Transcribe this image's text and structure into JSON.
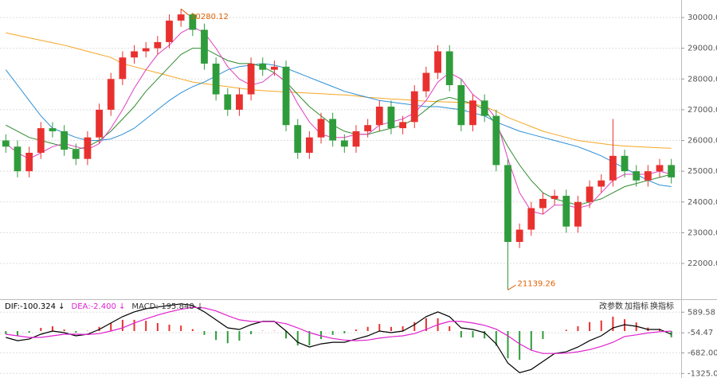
{
  "chart_data": [
    {
      "type": "candlestick",
      "up_color": "#e8312f",
      "down_color": "#2f9c3b",
      "open": [
        26000,
        25800,
        25000,
        25600,
        26400,
        26300,
        25700,
        25400,
        26100,
        27000,
        28000,
        28700,
        28900,
        29000,
        29200,
        29900,
        30100,
        29600,
        28500,
        27500,
        27000,
        27500,
        28500,
        28300,
        28400,
        26500,
        25600,
        26100,
        26700,
        26000,
        25800,
        26300,
        26500,
        27100,
        26400,
        26600,
        27600,
        28200,
        28900,
        27800,
        26500,
        27300,
        26800,
        25200,
        22700,
        23100,
        23800,
        24100,
        24200,
        23200,
        24000,
        24500,
        24700,
        25500,
        25000,
        24700,
        25000,
        25200
      ],
      "high": [
        26200,
        26000,
        25800,
        26600,
        26600,
        26500,
        25900,
        26300,
        27200,
        28200,
        28900,
        29100,
        29200,
        29400,
        30100,
        30280.12,
        30150,
        29800,
        28700,
        27700,
        27700,
        28700,
        28700,
        28600,
        28600,
        26700,
        26300,
        26900,
        26900,
        26200,
        26500,
        26700,
        27300,
        27300,
        26800,
        27800,
        28400,
        29100,
        29100,
        28000,
        27500,
        27500,
        27000,
        25400,
        23300,
        24000,
        24300,
        24400,
        24400,
        24200,
        24700,
        24900,
        26700,
        25700,
        25200,
        25200,
        25400,
        25400
      ],
      "low": [
        25600,
        24800,
        24800,
        25400,
        26100,
        25500,
        25200,
        25200,
        25900,
        26800,
        27800,
        28500,
        28700,
        28800,
        29000,
        29700,
        29400,
        28300,
        27300,
        26800,
        26800,
        27300,
        28100,
        28100,
        26300,
        25400,
        25400,
        25900,
        25800,
        25600,
        25600,
        26100,
        26300,
        26200,
        26200,
        26400,
        27400,
        28000,
        27600,
        26300,
        26300,
        26600,
        25000,
        21139.26,
        22500,
        22900,
        23600,
        23900,
        23000,
        23000,
        23800,
        24300,
        24500,
        24800,
        24500,
        24500,
        24800,
        24600
      ],
      "close": [
        25800,
        25000,
        25600,
        26400,
        26300,
        25700,
        25400,
        26100,
        27000,
        28000,
        28700,
        28900,
        29000,
        29200,
        29900,
        30100,
        29600,
        28500,
        27500,
        27000,
        27500,
        28500,
        28300,
        28400,
        26500,
        25600,
        26100,
        26700,
        26000,
        25800,
        26300,
        26500,
        27100,
        26400,
        26600,
        27600,
        28200,
        28900,
        27800,
        26500,
        27300,
        26800,
        25200,
        22700,
        23100,
        23800,
        24100,
        24200,
        23200,
        24000,
        24500,
        24700,
        25500,
        25000,
        24700,
        25000,
        25200,
        24800
      ],
      "lines": [
        {
          "color": "#f5a623",
          "values": [
            29500,
            29420,
            29340,
            29260,
            29180,
            29100,
            29000,
            28900,
            28800,
            28700,
            28500,
            28400,
            28300,
            28200,
            28100,
            28000,
            27900,
            27850,
            27800,
            27750,
            27700,
            27650,
            27620,
            27600,
            27580,
            27560,
            27540,
            27520,
            27500,
            27480,
            27450,
            27400,
            27380,
            27350,
            27330,
            27300,
            27280,
            27260,
            27250,
            27240,
            27200,
            27100,
            26950,
            26750,
            26600,
            26450,
            26300,
            26200,
            26100,
            26000,
            25950,
            25900,
            25850,
            25820,
            25800,
            25780,
            25760,
            25750
          ]
        },
        {
          "color": "#2b8fd6",
          "values": [
            28300,
            27800,
            27300,
            26800,
            26400,
            26250,
            26100,
            26000,
            26000,
            26050,
            26200,
            26400,
            26700,
            27000,
            27300,
            27550,
            27750,
            27900,
            28100,
            28300,
            28400,
            28450,
            28500,
            28450,
            28350,
            28200,
            28050,
            27900,
            27750,
            27600,
            27500,
            27400,
            27300,
            27250,
            27200,
            27150,
            27100,
            27100,
            27050,
            27000,
            26900,
            26800,
            26600,
            26450,
            26300,
            26200,
            26100,
            26000,
            25900,
            25800,
            25650,
            25500,
            25300,
            25100,
            24900,
            24700,
            24550,
            24500
          ]
        },
        {
          "color": "#2e8b2e",
          "values": [
            26500,
            26300,
            26100,
            26000,
            25900,
            25800,
            25700,
            25800,
            26000,
            26300,
            26700,
            27100,
            27600,
            28000,
            28400,
            28800,
            29000,
            29000,
            28800,
            28600,
            28500,
            28500,
            28400,
            28200,
            27900,
            27500,
            27100,
            26800,
            26500,
            26300,
            26200,
            26200,
            26300,
            26400,
            26500,
            26700,
            27000,
            27300,
            27400,
            27300,
            27200,
            27000,
            26500,
            25800,
            25200,
            24700,
            24300,
            24100,
            24000,
            23900,
            24000,
            24100,
            24300,
            24500,
            24600,
            24700,
            24800,
            24900
          ]
        },
        {
          "color": "#e040c0",
          "values": [
            25900,
            25600,
            25400,
            25600,
            25800,
            25900,
            25800,
            25700,
            25900,
            26400,
            27000,
            27700,
            28300,
            28800,
            29100,
            29500,
            29700,
            29500,
            29000,
            28400,
            28000,
            27800,
            27900,
            28200,
            27900,
            27200,
            26600,
            26200,
            26100,
            26100,
            26200,
            26200,
            26500,
            26600,
            26700,
            26900,
            27300,
            27900,
            28200,
            28000,
            27500,
            27200,
            26700,
            25400,
            24300,
            23700,
            23600,
            23900,
            23900,
            23800,
            23900,
            24300,
            24700,
            24900,
            24900,
            24900,
            25000,
            24900
          ]
        }
      ],
      "high_annotation": {
        "value": 30280.12,
        "label": "30280.12"
      },
      "low_annotation": {
        "value": 21139.26,
        "label": "21139.26"
      },
      "ylim": [
        20940,
        30440
      ],
      "yticks": [
        {
          "value": 22000,
          "label": "22000.00"
        },
        {
          "value": 23000,
          "label": "23000.00"
        },
        {
          "value": 24000,
          "label": "24000.00"
        },
        {
          "value": 25000,
          "label": "25000.00"
        },
        {
          "value": 26000,
          "label": "26000.00"
        },
        {
          "value": 27000,
          "label": "27000.00"
        },
        {
          "value": 28000,
          "label": "28000.00"
        },
        {
          "value": 29000,
          "label": "29000.00"
        },
        {
          "value": 30000,
          "label": "30000.00"
        }
      ],
      "grid": true
    },
    {
      "type": "macd",
      "header": [
        {
          "text": "DIF:-100.324 ↓",
          "color": "#000000"
        },
        {
          "text": "DEA:-2.400 ↓",
          "color": "#e020d0"
        },
        {
          "text": "MACD:-195.848 ↓",
          "color": "#333333"
        }
      ],
      "buttons": [
        "改参数",
        "加指标",
        "换指标"
      ],
      "up_color": "#e8312f",
      "down_color": "#2f9c3b",
      "dif": {
        "color": "#000000",
        "values": [
          -200,
          -300,
          -250,
          -100,
          0,
          -50,
          -150,
          -100,
          50,
          250,
          450,
          600,
          700,
          750,
          800,
          850,
          800,
          600,
          350,
          100,
          50,
          200,
          300,
          300,
          0,
          -350,
          -500,
          -400,
          -350,
          -350,
          -250,
          -150,
          0,
          -50,
          0,
          200,
          450,
          600,
          450,
          100,
          50,
          -50,
          -400,
          -1000,
          -1300,
          -1200,
          -950,
          -700,
          -650,
          -500,
          -300,
          -150,
          100,
          200,
          150,
          50,
          50,
          -100.324
        ]
      },
      "dea": {
        "color": "#e020d0",
        "values": [
          -100,
          -150,
          -200,
          -200,
          -150,
          -100,
          -100,
          -110,
          -80,
          0,
          100,
          250,
          380,
          500,
          600,
          680,
          740,
          720,
          630,
          480,
          350,
          300,
          290,
          290,
          230,
          100,
          -50,
          -150,
          -230,
          -280,
          -300,
          -280,
          -220,
          -180,
          -150,
          -80,
          50,
          200,
          300,
          300,
          250,
          180,
          60,
          -150,
          -400,
          -600,
          -700,
          -700,
          -690,
          -650,
          -580,
          -480,
          -350,
          -170,
          -120,
          -60,
          -20,
          -2.4
        ]
      },
      "histogram": [
        -100,
        -150,
        -50,
        100,
        150,
        50,
        -50,
        10,
        130,
        250,
        350,
        350,
        320,
        250,
        200,
        170,
        60,
        -120,
        -280,
        -380,
        -300,
        -100,
        10,
        10,
        -230,
        -450,
        -450,
        -250,
        -120,
        -70,
        50,
        130,
        220,
        130,
        150,
        280,
        400,
        400,
        150,
        -200,
        -200,
        -230,
        -460,
        -850,
        -900,
        -600,
        -250,
        0,
        40,
        150,
        280,
        330,
        450,
        370,
        270,
        110,
        70,
        -195.848
      ],
      "ylim": [
        -1467,
        945
      ],
      "yticks": [
        589.58,
        -54.47,
        {
          "value": -682,
          "label": "-682.00"
        },
        -1325.05
      ],
      "grid": true
    }
  ]
}
